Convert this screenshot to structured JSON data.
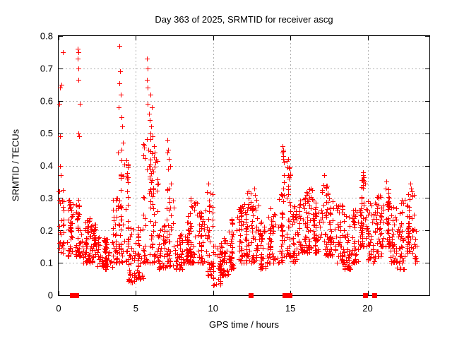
{
  "chart_data": {
    "type": "scatter",
    "title": "Day 363 of 2025, SRMTID for receiver ascg",
    "xlabel": "GPS time / hours",
    "ylabel": "SRMTID / TECUs",
    "xlim": [
      0,
      24
    ],
    "ylim": [
      0,
      0.8
    ],
    "grid": true,
    "legend": "none",
    "x_ticks": [
      {
        "v": 0,
        "label": "0"
      },
      {
        "v": 5,
        "label": "5"
      },
      {
        "v": 10,
        "label": "10"
      },
      {
        "v": 15,
        "label": "15"
      },
      {
        "v": 20,
        "label": "20"
      }
    ],
    "y_ticks": [
      {
        "v": 0.0,
        "label": "0"
      },
      {
        "v": 0.1,
        "label": "0.1"
      },
      {
        "v": 0.2,
        "label": "0.2"
      },
      {
        "v": 0.3,
        "label": "0.3"
      },
      {
        "v": 0.4,
        "label": "0.4"
      },
      {
        "v": 0.5,
        "label": "0.5"
      },
      {
        "v": 0.6,
        "label": "0.6"
      },
      {
        "v": 0.7,
        "label": "0.7"
      },
      {
        "v": 0.8,
        "label": "0.8"
      }
    ],
    "colors": {
      "marker": "#ff0000",
      "grid": "#b0b0b0",
      "axis": "#000000",
      "text": "#000000",
      "background": "#ffffff"
    },
    "series": [
      {
        "name": "srmtid-scatter",
        "marker": "plus",
        "seed": 1363,
        "outlier_points": [
          [
            0.1,
            0.64
          ],
          [
            0.08,
            0.49
          ],
          [
            0.1,
            0.4
          ],
          [
            0.14,
            0.37
          ],
          [
            0.28,
            0.75
          ],
          [
            0.2,
            0.65
          ],
          [
            0.05,
            0.59
          ],
          [
            1.25,
            0.76
          ],
          [
            1.28,
            0.75
          ],
          [
            1.25,
            0.73
          ],
          [
            1.3,
            0.7
          ],
          [
            1.28,
            0.665
          ],
          [
            1.35,
            0.59
          ],
          [
            1.3,
            0.5
          ],
          [
            1.32,
            0.49
          ],
          [
            3.95,
            0.77
          ],
          [
            3.97,
            0.69
          ],
          [
            3.95,
            0.655
          ],
          [
            4.0,
            0.62
          ],
          [
            3.9,
            0.58
          ],
          [
            4.05,
            0.55
          ],
          [
            4.1,
            0.52
          ],
          [
            4.15,
            0.47
          ],
          [
            4.05,
            0.45
          ],
          [
            3.85,
            0.44
          ],
          [
            5.7,
            0.73
          ],
          [
            5.75,
            0.7
          ],
          [
            5.72,
            0.665
          ],
          [
            5.78,
            0.64
          ],
          [
            5.95,
            0.62
          ],
          [
            5.75,
            0.59
          ],
          [
            6.05,
            0.58
          ],
          [
            5.85,
            0.56
          ],
          [
            5.9,
            0.54
          ],
          [
            6.0,
            0.52
          ],
          [
            5.95,
            0.5
          ],
          [
            6.1,
            0.49
          ],
          [
            6.15,
            0.46
          ],
          [
            6.2,
            0.44
          ],
          [
            6.25,
            0.41
          ],
          [
            7.05,
            0.48
          ],
          [
            7.1,
            0.45
          ],
          [
            7.05,
            0.44
          ],
          [
            7.15,
            0.42
          ],
          [
            7.2,
            0.4
          ],
          [
            7.1,
            0.39
          ],
          [
            7.25,
            0.345
          ],
          [
            7.15,
            0.33
          ],
          [
            9.7,
            0.345
          ],
          [
            12.65,
            0.33
          ],
          [
            12.7,
            0.31
          ],
          [
            14.5,
            0.46
          ],
          [
            14.52,
            0.45
          ],
          [
            14.55,
            0.445
          ],
          [
            14.5,
            0.44
          ],
          [
            14.55,
            0.43
          ],
          [
            14.52,
            0.42
          ],
          [
            14.58,
            0.41
          ],
          [
            14.6,
            0.37
          ],
          [
            14.55,
            0.33
          ],
          [
            14.6,
            0.31
          ],
          [
            17.2,
            0.37
          ],
          [
            17.15,
            0.34
          ],
          [
            19.7,
            0.38
          ],
          [
            19.72,
            0.37
          ],
          [
            19.75,
            0.365
          ],
          [
            19.68,
            0.355
          ],
          [
            19.78,
            0.35
          ],
          [
            19.72,
            0.34
          ],
          [
            21.2,
            0.35
          ],
          [
            21.15,
            0.33
          ],
          [
            22.75,
            0.345
          ],
          [
            22.8,
            0.33
          ],
          [
            23.0,
            0.31
          ],
          [
            4.7,
            0.045
          ],
          [
            4.75,
            0.06
          ],
          [
            10.2,
            0.035
          ],
          [
            10.35,
            0.05
          ],
          [
            18.9,
            0.08
          ],
          [
            21.9,
            0.085
          ]
        ],
        "band_envelope": {
          "bin_hours": 0.5,
          "columns": [
            [
              0.0,
              0.13,
              0.33,
              30,
              0.35
            ],
            [
              0.5,
              0.12,
              0.32,
              40
            ],
            [
              1.0,
              0.12,
              0.3,
              45
            ],
            [
              1.5,
              0.1,
              0.24,
              40
            ],
            [
              2.0,
              0.1,
              0.22,
              40
            ],
            [
              2.5,
              0.09,
              0.18,
              40
            ],
            [
              3.0,
              0.08,
              0.18,
              40
            ],
            [
              3.5,
              0.1,
              0.3,
              45
            ],
            [
              4.0,
              0.1,
              0.42,
              50
            ],
            [
              4.5,
              0.04,
              0.22,
              35
            ],
            [
              5.0,
              0.05,
              0.22,
              35
            ],
            [
              5.5,
              0.1,
              0.5,
              50
            ],
            [
              6.0,
              0.1,
              0.45,
              45
            ],
            [
              6.5,
              0.08,
              0.22,
              40
            ],
            [
              7.0,
              0.09,
              0.33,
              40
            ],
            [
              7.5,
              0.08,
              0.2,
              40
            ],
            [
              8.0,
              0.1,
              0.25,
              40
            ],
            [
              8.5,
              0.1,
              0.3,
              40
            ],
            [
              9.0,
              0.1,
              0.26,
              40
            ],
            [
              9.5,
              0.06,
              0.32,
              40
            ],
            [
              10.0,
              0.03,
              0.16,
              40
            ],
            [
              10.5,
              0.06,
              0.18,
              40
            ],
            [
              11.0,
              0.08,
              0.24,
              40
            ],
            [
              11.5,
              0.1,
              0.28,
              40
            ],
            [
              12.0,
              0.1,
              0.32,
              40
            ],
            [
              12.5,
              0.1,
              0.3,
              40
            ],
            [
              13.0,
              0.08,
              0.24,
              40
            ],
            [
              13.5,
              0.1,
              0.27,
              40
            ],
            [
              14.0,
              0.1,
              0.32,
              40
            ],
            [
              14.5,
              0.12,
              0.42,
              40
            ],
            [
              15.0,
              0.1,
              0.28,
              40
            ],
            [
              15.5,
              0.13,
              0.32,
              40
            ],
            [
              16.0,
              0.13,
              0.33,
              40
            ],
            [
              16.5,
              0.13,
              0.3,
              40
            ],
            [
              17.0,
              0.12,
              0.34,
              40
            ],
            [
              17.5,
              0.12,
              0.3,
              40
            ],
            [
              18.0,
              0.1,
              0.28,
              40
            ],
            [
              18.5,
              0.08,
              0.26,
              40
            ],
            [
              19.0,
              0.1,
              0.28,
              40
            ],
            [
              19.5,
              0.15,
              0.38,
              50
            ],
            [
              20.0,
              0.1,
              0.3,
              40
            ],
            [
              20.5,
              0.12,
              0.32,
              45
            ],
            [
              21.0,
              0.15,
              0.35,
              45
            ],
            [
              21.5,
              0.1,
              0.28,
              40
            ],
            [
              22.0,
              0.08,
              0.3,
              40
            ],
            [
              22.5,
              0.13,
              0.33,
              45
            ],
            [
              23.0,
              0.1,
              0.25,
              15,
              0.2
            ]
          ]
        }
      },
      {
        "name": "baseline-flags",
        "marker": "filled-square",
        "y": 0,
        "x": [
          0.85,
          1.12,
          12.42,
          14.65,
          14.97,
          19.86,
          20.42
        ]
      }
    ]
  }
}
